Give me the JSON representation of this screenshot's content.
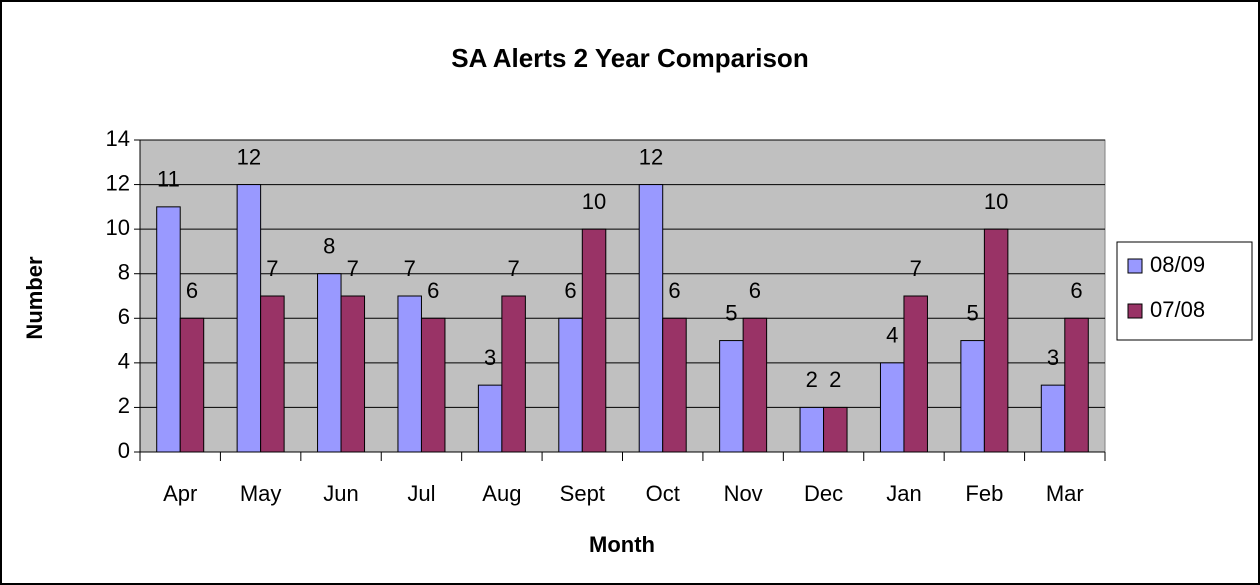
{
  "chart_data": {
    "type": "bar",
    "title": "SA Alerts 2 Year Comparison",
    "x_label": "Month",
    "y_label": "Number",
    "categories": [
      "Apr",
      "May",
      "Jun",
      "Jul",
      "Aug",
      "Sept",
      "Oct",
      "Nov",
      "Dec",
      "Jan",
      "Feb",
      "Mar"
    ],
    "series": [
      {
        "name": "08/09",
        "color": "#9999ff",
        "values": [
          11,
          12,
          8,
          7,
          3,
          6,
          12,
          5,
          2,
          4,
          5,
          3
        ]
      },
      {
        "name": "07/08",
        "color": "#993366",
        "values": [
          6,
          7,
          7,
          6,
          7,
          10,
          6,
          6,
          2,
          7,
          10,
          6
        ]
      }
    ],
    "ylim": [
      0,
      14
    ],
    "yticks": [
      0,
      2,
      4,
      6,
      8,
      10,
      12,
      14
    ],
    "grid": true,
    "legend": "right"
  }
}
